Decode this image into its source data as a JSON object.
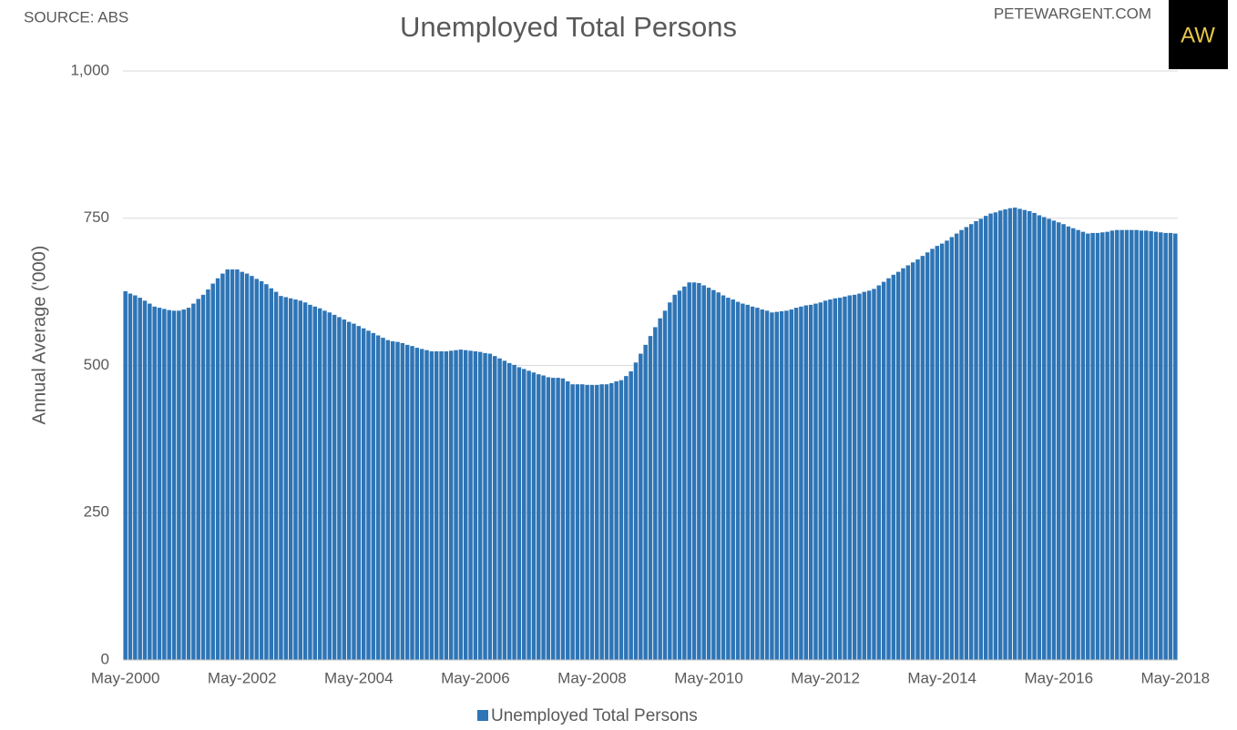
{
  "source": "SOURCE: ABS",
  "site": "PETEWARGENT.COM",
  "logo_text": "AW",
  "chart_data": {
    "type": "bar",
    "title": "Unemployed Total Persons",
    "y_label": "Annual Average ('000)",
    "categories": [
      "May-2000",
      null,
      null,
      null,
      null,
      null,
      null,
      null,
      null,
      null,
      null,
      null,
      null,
      null,
      null,
      null,
      null,
      null,
      null,
      null,
      null,
      null,
      null,
      null,
      "May-2002",
      null,
      null,
      null,
      null,
      null,
      null,
      null,
      null,
      null,
      null,
      null,
      null,
      null,
      null,
      null,
      null,
      null,
      null,
      null,
      null,
      null,
      null,
      null,
      "May-2004",
      null,
      null,
      null,
      null,
      null,
      null,
      null,
      null,
      null,
      null,
      null,
      null,
      null,
      null,
      null,
      null,
      null,
      null,
      null,
      null,
      null,
      null,
      null,
      "May-2006",
      null,
      null,
      null,
      null,
      null,
      null,
      null,
      null,
      null,
      null,
      null,
      null,
      null,
      null,
      null,
      null,
      null,
      null,
      null,
      null,
      null,
      null,
      null,
      "May-2008",
      null,
      null,
      null,
      null,
      null,
      null,
      null,
      null,
      null,
      null,
      null,
      null,
      null,
      null,
      null,
      null,
      null,
      null,
      null,
      null,
      null,
      null,
      null,
      "May-2010",
      null,
      null,
      null,
      null,
      null,
      null,
      null,
      null,
      null,
      null,
      null,
      null,
      null,
      null,
      null,
      null,
      null,
      null,
      null,
      null,
      null,
      null,
      null,
      "May-2012",
      null,
      null,
      null,
      null,
      null,
      null,
      null,
      null,
      null,
      null,
      null,
      null,
      null,
      null,
      null,
      null,
      null,
      null,
      null,
      null,
      null,
      null,
      null,
      "May-2014",
      null,
      null,
      null,
      null,
      null,
      null,
      null,
      null,
      null,
      null,
      null,
      null,
      null,
      null,
      null,
      null,
      null,
      null,
      null,
      null,
      null,
      null,
      null,
      "May-2016",
      null,
      null,
      null,
      null,
      null,
      null,
      null,
      null,
      null,
      null,
      null,
      null,
      null,
      null,
      null,
      null,
      null,
      null,
      null,
      null,
      null,
      null,
      null,
      "May-2018"
    ],
    "series": [
      {
        "name": "Unemployed Total Persons",
        "color": "#2e75b6",
        "values": [
          626,
          622,
          619,
          615,
          610,
          605,
          600,
          598,
          596,
          594,
          593,
          593,
          595,
          598,
          605,
          613,
          620,
          629,
          639,
          648,
          656,
          663,
          663,
          663,
          659,
          656,
          652,
          647,
          643,
          638,
          631,
          625,
          618,
          616,
          614,
          612,
          610,
          607,
          603,
          600,
          597,
          593,
          590,
          586,
          582,
          578,
          574,
          571,
          567,
          563,
          559,
          555,
          551,
          547,
          543,
          541,
          540,
          538,
          535,
          533,
          530,
          528,
          526,
          524,
          524,
          524,
          524,
          525,
          526,
          527,
          526,
          525,
          524,
          523,
          521,
          520,
          516,
          512,
          508,
          504,
          501,
          497,
          494,
          491,
          488,
          485,
          483,
          480,
          479,
          479,
          478,
          473,
          468,
          468,
          468,
          467,
          467,
          467,
          468,
          468,
          470,
          473,
          475,
          482,
          490,
          505,
          520,
          535,
          550,
          565,
          580,
          593,
          607,
          620,
          627,
          634,
          641,
          641,
          640,
          636,
          632,
          628,
          624,
          619,
          615,
          612,
          608,
          605,
          603,
          600,
          598,
          595,
          593,
          590,
          591,
          592,
          593,
          595,
          598,
          600,
          602,
          603,
          605,
          607,
          610,
          612,
          614,
          615,
          617,
          619,
          620,
          622,
          625,
          627,
          630,
          636,
          642,
          648,
          654,
          659,
          665,
          670,
          675,
          680,
          686,
          692,
          698,
          703,
          707,
          712,
          718,
          724,
          730,
          735,
          740,
          745,
          749,
          754,
          758,
          760,
          763,
          765,
          767,
          768,
          766,
          764,
          762,
          759,
          755,
          752,
          749,
          746,
          743,
          740,
          736,
          733,
          730,
          727,
          724,
          725,
          725,
          726,
          727,
          729,
          730,
          730,
          730,
          730,
          730,
          729,
          729,
          728,
          727,
          726,
          725,
          725,
          724
        ]
      }
    ],
    "ylim": [
      0,
      1000
    ],
    "yticks": [
      0,
      250,
      500,
      750,
      {
        "value": 1000,
        "label": "1,000"
      }
    ],
    "grid": true
  }
}
